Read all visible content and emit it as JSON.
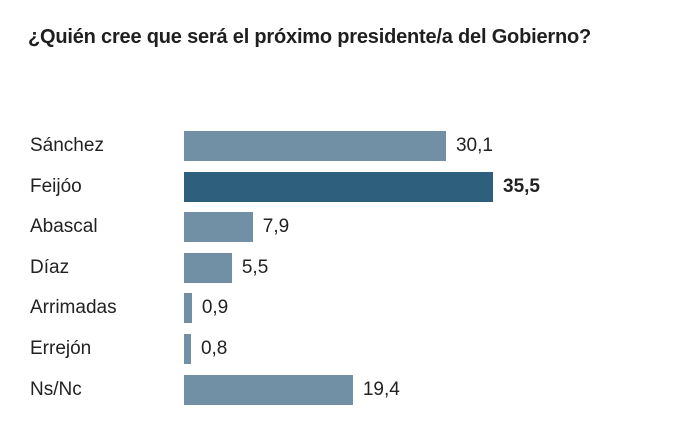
{
  "chart_data": {
    "type": "bar",
    "orientation": "horizontal",
    "title": "¿Quién cree que será el próximo presidente/a del Gobierno?",
    "categories": [
      "Sánchez",
      "Feijóo",
      "Abascal",
      "Díaz",
      "Arrimadas",
      "Errejón",
      "Ns/Nc"
    ],
    "values": [
      30.1,
      35.5,
      7.9,
      5.5,
      0.9,
      0.8,
      19.4
    ],
    "value_labels": [
      "30,1",
      "35,5",
      "7,9",
      "5,5",
      "0,9",
      "0,8",
      "19,4"
    ],
    "highlight_index": 1,
    "colors": {
      "bar": "#7190a6",
      "highlight": "#2e5f7c"
    },
    "xlim": [
      0,
      35.5
    ],
    "grid": false,
    "legend": "none"
  }
}
